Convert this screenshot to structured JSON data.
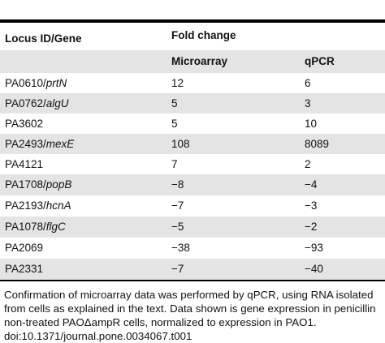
{
  "table": {
    "header": {
      "locus": "Locus ID/Gene",
      "fold_change": "Fold change",
      "microarray": "Microarray",
      "qpcr": "qPCR"
    },
    "rows": [
      {
        "locus": "PA0610/",
        "gene": "prtN",
        "microarray": "12",
        "qpcr": "6"
      },
      {
        "locus": "PA0762/",
        "gene": "algU",
        "microarray": "5",
        "qpcr": "3"
      },
      {
        "locus": "PA3602",
        "gene": "",
        "microarray": "5",
        "qpcr": "10"
      },
      {
        "locus": "PA2493/",
        "gene": "mexE",
        "microarray": "108",
        "qpcr": "8089"
      },
      {
        "locus": "PA4121",
        "gene": "",
        "microarray": "7",
        "qpcr": "2"
      },
      {
        "locus": "PA1708/",
        "gene": "popB",
        "microarray": "−8",
        "qpcr": "−4"
      },
      {
        "locus": "PA2193/",
        "gene": "hcnA",
        "microarray": "−7",
        "qpcr": "−3"
      },
      {
        "locus": "PA1078/",
        "gene": "flgC",
        "microarray": "−5",
        "qpcr": "−2"
      },
      {
        "locus": "PA2069",
        "gene": "",
        "microarray": "−38",
        "qpcr": "−93"
      },
      {
        "locus": "PA2331",
        "gene": "",
        "microarray": "−7",
        "qpcr": "−40"
      }
    ]
  },
  "caption": {
    "line1": "Confirmation of microarray data was performed by qPCR, using RNA isolated",
    "line2": "from cells as explained in the text. Data shown is gene expression in penicillin",
    "line3": "non-treated PAOΔampR cells, normalized to expression in PAO1.",
    "line4": "doi:10.1371/journal.pone.0034067.t001"
  }
}
